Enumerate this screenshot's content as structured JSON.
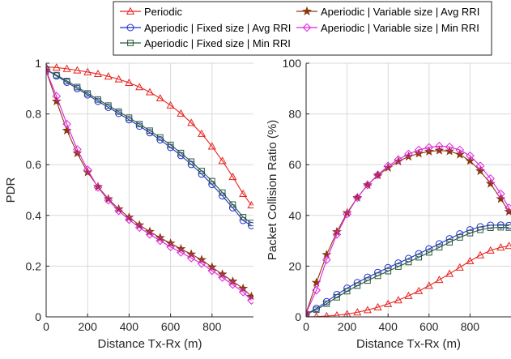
{
  "legend": {
    "entries": [
      {
        "label": "Periodic",
        "color": "#e8231f",
        "marker": "triangle"
      },
      {
        "label": "Aperiodic | Fixed size | Avg RRI",
        "color": "#1f2fd6",
        "marker": "circle"
      },
      {
        "label": "Aperiodic | Fixed size | Min RRI",
        "color": "#2a5a3a",
        "marker": "square"
      },
      {
        "label": "Aperiodic | Variable size | Avg RRI",
        "color": "#8b3a0e",
        "marker": "star"
      },
      {
        "label": "Aperiodic | Variable size | Min RRI",
        "color": "#e020e0",
        "marker": "diamond"
      }
    ]
  },
  "chart_data": [
    {
      "type": "line",
      "xlabel": "Distance Tx-Rx (m)",
      "ylabel": "PDR",
      "xlim": [
        0,
        1000
      ],
      "ylim": [
        0,
        1
      ],
      "xticks": [
        0,
        200,
        400,
        600,
        800
      ],
      "yticks": [
        0,
        0.2,
        0.4,
        0.6,
        0.8,
        1
      ],
      "ytick_labels": [
        "0",
        "0.2",
        "0.4",
        "0.6",
        "0.8",
        "1"
      ],
      "grid": true,
      "x": [
        0,
        50,
        100,
        150,
        200,
        250,
        300,
        350,
        400,
        450,
        500,
        550,
        600,
        650,
        700,
        750,
        800,
        850,
        900,
        950,
        990
      ],
      "series": [
        {
          "name": "Periodic",
          "color": "#e8231f",
          "marker": "triangle",
          "values": [
            0.985,
            0.983,
            0.978,
            0.972,
            0.965,
            0.958,
            0.948,
            0.937,
            0.923,
            0.906,
            0.886,
            0.862,
            0.834,
            0.802,
            0.765,
            0.722,
            0.672,
            0.615,
            0.552,
            0.485,
            0.44
          ]
        },
        {
          "name": "Aperiodic | Fixed size | Avg RRI",
          "color": "#1f2fd6",
          "marker": "circle",
          "values": [
            0.975,
            0.95,
            0.925,
            0.9,
            0.875,
            0.85,
            0.826,
            0.802,
            0.777,
            0.752,
            0.726,
            0.698,
            0.668,
            0.636,
            0.601,
            0.563,
            0.522,
            0.477,
            0.43,
            0.38,
            0.36
          ]
        },
        {
          "name": "Aperiodic | Fixed size | Min RRI",
          "color": "#2a5a3a",
          "marker": "square",
          "values": [
            0.975,
            0.953,
            0.93,
            0.906,
            0.881,
            0.857,
            0.833,
            0.809,
            0.785,
            0.76,
            0.734,
            0.707,
            0.678,
            0.646,
            0.612,
            0.575,
            0.535,
            0.49,
            0.443,
            0.393,
            0.37
          ]
        },
        {
          "name": "Aperiodic | Variable size | Avg RRI",
          "color": "#8b3a0e",
          "marker": "star",
          "values": [
            0.97,
            0.85,
            0.735,
            0.645,
            0.57,
            0.513,
            0.465,
            0.425,
            0.392,
            0.362,
            0.336,
            0.312,
            0.29,
            0.268,
            0.247,
            0.225,
            0.196,
            0.168,
            0.14,
            0.112,
            0.08
          ]
        },
        {
          "name": "Aperiodic | Variable size | Min RRI",
          "color": "#e020e0",
          "marker": "diamond",
          "values": [
            0.97,
            0.87,
            0.76,
            0.66,
            0.58,
            0.51,
            0.46,
            0.418,
            0.383,
            0.352,
            0.325,
            0.3,
            0.276,
            0.254,
            0.232,
            0.21,
            0.182,
            0.155,
            0.127,
            0.098,
            0.065
          ]
        }
      ]
    },
    {
      "type": "line",
      "xlabel": "Distance Tx-Rx (m)",
      "ylabel": "Packet Collision Ratio (%)",
      "xlim": [
        0,
        1000
      ],
      "ylim": [
        0,
        100
      ],
      "xticks": [
        0,
        200,
        400,
        600,
        800
      ],
      "yticks": [
        0,
        20,
        40,
        60,
        80,
        100
      ],
      "ytick_labels": [
        "0",
        "20",
        "40",
        "60",
        "80",
        "100"
      ],
      "grid": true,
      "x": [
        0,
        50,
        100,
        150,
        200,
        250,
        300,
        350,
        400,
        450,
        500,
        550,
        600,
        650,
        700,
        750,
        800,
        850,
        900,
        950,
        990
      ],
      "series": [
        {
          "name": "Periodic",
          "color": "#e8231f",
          "marker": "triangle",
          "values": [
            0,
            0.1,
            0.3,
            0.6,
            1.1,
            1.8,
            2.7,
            3.8,
            5.1,
            6.6,
            8.3,
            10.2,
            12.3,
            14.6,
            17.0,
            19.5,
            22.0,
            24.3,
            26.2,
            27.4,
            28.0
          ]
        },
        {
          "name": "Aperiodic | Fixed size | Avg RRI",
          "color": "#1f2fd6",
          "marker": "circle",
          "values": [
            1.0,
            3.3,
            6.0,
            8.8,
            11.3,
            13.5,
            15.6,
            17.5,
            19.4,
            21.2,
            23.0,
            24.9,
            26.8,
            28.8,
            30.8,
            32.7,
            34.3,
            35.5,
            36.1,
            36.2,
            36.0
          ]
        },
        {
          "name": "Aperiodic | Fixed size | Min RRI",
          "color": "#2a5a3a",
          "marker": "square",
          "values": [
            1.0,
            2.8,
            5.2,
            7.7,
            10.1,
            12.3,
            14.3,
            16.2,
            18.0,
            19.8,
            21.6,
            23.5,
            25.4,
            27.4,
            29.4,
            31.3,
            33.0,
            34.3,
            35.1,
            35.3,
            35.2
          ]
        },
        {
          "name": "Aperiodic | Variable size | Avg RRI",
          "color": "#8b3a0e",
          "marker": "star",
          "values": [
            1.5,
            13.5,
            24.5,
            33.5,
            41.0,
            47.0,
            52.0,
            55.8,
            58.8,
            61.3,
            63.2,
            64.4,
            65.2,
            65.6,
            65.3,
            64.0,
            61.5,
            57.5,
            52.5,
            46.5,
            41.5
          ]
        },
        {
          "name": "Aperiodic | Variable size | Min RRI",
          "color": "#e020e0",
          "marker": "diamond",
          "values": [
            1.5,
            10.5,
            22.5,
            32.5,
            40.5,
            47.0,
            52.0,
            56.0,
            59.5,
            62.0,
            64.2,
            65.8,
            66.8,
            67.3,
            67.0,
            65.8,
            63.5,
            59.5,
            54.5,
            48.5,
            43.0
          ]
        }
      ]
    }
  ]
}
